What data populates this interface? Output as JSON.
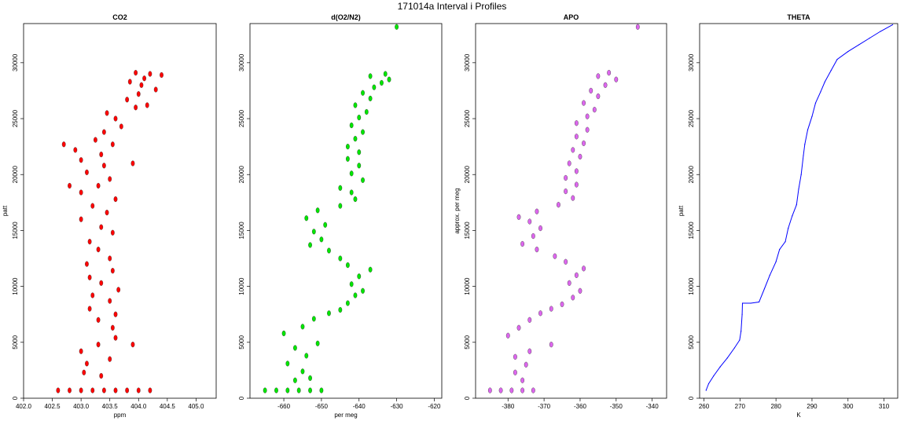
{
  "figure": {
    "title": "171014a   Interval i Profiles"
  },
  "chart_data": [
    {
      "type": "scatter",
      "title": "CO2",
      "xlabel": "ppm",
      "ylabel": "patt",
      "xlim": [
        402.0,
        405.35
      ],
      "ylim": [
        0,
        33500
      ],
      "xticks": [
        "402.0",
        "402.5",
        "403.0",
        "403.5",
        "404.0",
        "404.5",
        "405.0"
      ],
      "xtick_values": [
        402.0,
        402.5,
        403.0,
        403.5,
        404.0,
        404.5,
        405.0
      ],
      "yticks": [
        "0",
        "5000",
        "10000",
        "15000",
        "20000",
        "25000",
        "30000"
      ],
      "ytick_values": [
        0,
        5000,
        10000,
        15000,
        20000,
        25000,
        30000
      ],
      "color": "#ff0000",
      "series": [
        {
          "values": [
            [
              402.6,
              700
            ],
            [
              402.8,
              700
            ],
            [
              403.0,
              700
            ],
            [
              403.2,
              700
            ],
            [
              403.4,
              700
            ],
            [
              403.6,
              700
            ],
            [
              403.8,
              700
            ],
            [
              404.0,
              700
            ],
            [
              404.2,
              700
            ],
            [
              403.05,
              2300
            ],
            [
              403.1,
              3100
            ],
            [
              403.35,
              2000
            ],
            [
              403.5,
              3500
            ],
            [
              403.0,
              4200
            ],
            [
              403.3,
              4800
            ],
            [
              403.9,
              4800
            ],
            [
              403.6,
              5400
            ],
            [
              403.55,
              6300
            ],
            [
              403.3,
              7000
            ],
            [
              403.6,
              7500
            ],
            [
              403.15,
              8000
            ],
            [
              403.5,
              8700
            ],
            [
              403.2,
              9200
            ],
            [
              403.65,
              9700
            ],
            [
              403.35,
              10300
            ],
            [
              403.15,
              10800
            ],
            [
              403.55,
              11400
            ],
            [
              403.1,
              12000
            ],
            [
              403.5,
              12500
            ],
            [
              403.3,
              13300
            ],
            [
              403.15,
              14000
            ],
            [
              403.55,
              14800
            ],
            [
              403.35,
              15300
            ],
            [
              403.0,
              16000
            ],
            [
              403.45,
              16600
            ],
            [
              403.2,
              17200
            ],
            [
              403.6,
              17800
            ],
            [
              403.0,
              18400
            ],
            [
              403.3,
              19000
            ],
            [
              402.8,
              19000
            ],
            [
              403.5,
              19600
            ],
            [
              403.1,
              20200
            ],
            [
              403.4,
              20800
            ],
            [
              403.9,
              21000
            ],
            [
              403.0,
              21300
            ],
            [
              403.35,
              21800
            ],
            [
              402.9,
              22200
            ],
            [
              403.55,
              22700
            ],
            [
              403.25,
              23100
            ],
            [
              402.7,
              22700
            ],
            [
              403.4,
              23800
            ],
            [
              403.7,
              24300
            ],
            [
              403.6,
              25000
            ],
            [
              403.45,
              25500
            ],
            [
              403.95,
              26000
            ],
            [
              404.15,
              26200
            ],
            [
              403.8,
              26700
            ],
            [
              404.0,
              27200
            ],
            [
              404.3,
              27600
            ],
            [
              404.05,
              28000
            ],
            [
              403.85,
              28300
            ],
            [
              404.1,
              28600
            ],
            [
              404.4,
              28900
            ],
            [
              404.2,
              29000
            ],
            [
              403.95,
              29100
            ]
          ]
        }
      ]
    },
    {
      "type": "scatter",
      "title": "d(O2/N2)",
      "xlabel": "per meg",
      "ylabel": "",
      "xlim": [
        -669,
        -618
      ],
      "ylim": [
        0,
        33500
      ],
      "xticks": [
        "-660",
        "-650",
        "-640",
        "-630",
        "-620"
      ],
      "xtick_values": [
        -660,
        -650,
        -640,
        -630,
        -620
      ],
      "yticks": [
        "0",
        "5000",
        "10000",
        "15000",
        "20000",
        "25000",
        "30000"
      ],
      "ytick_values": [
        0,
        5000,
        10000,
        15000,
        20000,
        25000,
        30000
      ],
      "color": "#00e600",
      "series": [
        {
          "values": [
            [
              -665,
              700
            ],
            [
              -662,
              700
            ],
            [
              -659,
              700
            ],
            [
              -656,
              700
            ],
            [
              -653,
              700
            ],
            [
              -650,
              700
            ],
            [
              -657,
              1600
            ],
            [
              -653,
              1800
            ],
            [
              -655,
              2400
            ],
            [
              -659,
              3100
            ],
            [
              -654,
              3800
            ],
            [
              -657,
              4500
            ],
            [
              -651,
              4900
            ],
            [
              -660,
              5800
            ],
            [
              -655,
              6400
            ],
            [
              -652,
              7100
            ],
            [
              -648,
              7600
            ],
            [
              -645,
              7900
            ],
            [
              -643,
              8500
            ],
            [
              -641,
              9200
            ],
            [
              -639,
              9600
            ],
            [
              -642,
              10200
            ],
            [
              -640,
              10900
            ],
            [
              -637,
              11500
            ],
            [
              -643,
              11900
            ],
            [
              -645,
              12500
            ],
            [
              -648,
              13200
            ],
            [
              -653,
              13700
            ],
            [
              -650,
              14200
            ],
            [
              -652,
              14900
            ],
            [
              -649,
              15500
            ],
            [
              -654,
              16100
            ],
            [
              -651,
              16800
            ],
            [
              -645,
              17200
            ],
            [
              -641,
              17800
            ],
            [
              -642,
              18400
            ],
            [
              -645,
              18800
            ],
            [
              -639,
              19500
            ],
            [
              -642,
              20100
            ],
            [
              -640,
              20800
            ],
            [
              -643,
              21400
            ],
            [
              -640,
              22000
            ],
            [
              -643,
              22500
            ],
            [
              -641,
              23200
            ],
            [
              -639,
              23800
            ],
            [
              -642,
              24400
            ],
            [
              -640,
              25100
            ],
            [
              -638,
              25600
            ],
            [
              -641,
              26200
            ],
            [
              -637,
              26800
            ],
            [
              -639,
              27300
            ],
            [
              -636,
              27800
            ],
            [
              -634,
              28200
            ],
            [
              -632,
              28500
            ],
            [
              -637,
              28800
            ],
            [
              -633,
              29000
            ],
            [
              -630,
              33200
            ]
          ]
        }
      ]
    },
    {
      "type": "scatter",
      "title": "APO",
      "xlabel": "",
      "ylabel": "approx. per meg",
      "xlim": [
        -389,
        -336
      ],
      "ylim": [
        0,
        33500
      ],
      "xticks": [
        "-380",
        "-370",
        "-360",
        "-350",
        "-340"
      ],
      "xtick_values": [
        -380,
        -370,
        -360,
        -350,
        -340
      ],
      "yticks": [
        "0",
        "5000",
        "10000",
        "15000",
        "20000",
        "25000",
        "30000"
      ],
      "ytick_values": [
        0,
        5000,
        10000,
        15000,
        20000,
        25000,
        30000
      ],
      "color": "#dd66ee",
      "series": [
        {
          "values": [
            [
              -385,
              700
            ],
            [
              -382,
              700
            ],
            [
              -379,
              700
            ],
            [
              -376,
              700
            ],
            [
              -373,
              700
            ],
            [
              -376,
              1600
            ],
            [
              -378,
              2300
            ],
            [
              -375,
              3000
            ],
            [
              -378,
              3700
            ],
            [
              -374,
              4200
            ],
            [
              -368,
              4800
            ],
            [
              -380,
              5600
            ],
            [
              -377,
              6300
            ],
            [
              -374,
              7000
            ],
            [
              -371,
              7600
            ],
            [
              -368,
              8000
            ],
            [
              -365,
              8400
            ],
            [
              -362,
              9000
            ],
            [
              -360,
              9600
            ],
            [
              -363,
              10300
            ],
            [
              -361,
              11000
            ],
            [
              -359,
              11600
            ],
            [
              -364,
              12200
            ],
            [
              -367,
              12700
            ],
            [
              -372,
              13300
            ],
            [
              -376,
              13800
            ],
            [
              -373,
              14500
            ],
            [
              -371,
              15200
            ],
            [
              -374,
              15800
            ],
            [
              -377,
              16200
            ],
            [
              -372,
              16700
            ],
            [
              -366,
              17300
            ],
            [
              -362,
              17900
            ],
            [
              -364,
              18500
            ],
            [
              -361,
              19100
            ],
            [
              -364,
              19700
            ],
            [
              -361,
              20300
            ],
            [
              -363,
              21000
            ],
            [
              -360,
              21600
            ],
            [
              -362,
              22200
            ],
            [
              -359,
              22800
            ],
            [
              -361,
              23400
            ],
            [
              -358,
              24000
            ],
            [
              -361,
              24600
            ],
            [
              -358,
              25200
            ],
            [
              -356,
              25800
            ],
            [
              -359,
              26400
            ],
            [
              -355,
              27000
            ],
            [
              -357,
              27500
            ],
            [
              -353,
              28000
            ],
            [
              -350,
              28500
            ],
            [
              -355,
              28800
            ],
            [
              -352,
              29100
            ],
            [
              -344,
              33200
            ]
          ]
        }
      ]
    },
    {
      "type": "line",
      "title": "THETA",
      "xlabel": "K",
      "ylabel": "patt",
      "xlim": [
        258.8,
        313.8
      ],
      "ylim": [
        0,
        33500
      ],
      "xticks": [
        "260",
        "270",
        "280",
        "290",
        "300",
        "310"
      ],
      "xtick_values": [
        260,
        270,
        280,
        290,
        300,
        310
      ],
      "yticks": [
        "0",
        "5000",
        "10000",
        "15000",
        "20000",
        "25000",
        "30000"
      ],
      "ytick_values": [
        0,
        5000,
        10000,
        15000,
        20000,
        25000,
        30000
      ],
      "color": "#0000ff",
      "series": [
        {
          "values": [
            [
              260.6,
              700
            ],
            [
              261.3,
              1300
            ],
            [
              262.7,
              2000
            ],
            [
              264.5,
              2800
            ],
            [
              266.5,
              3600
            ],
            [
              268.5,
              4500
            ],
            [
              269.9,
              5200
            ],
            [
              270.3,
              6000
            ],
            [
              270.6,
              7500
            ],
            [
              270.7,
              8500
            ],
            [
              273.0,
              8500
            ],
            [
              275.3,
              8600
            ],
            [
              276.8,
              9800
            ],
            [
              278.3,
              11000
            ],
            [
              280.0,
              12200
            ],
            [
              281.0,
              13300
            ],
            [
              282.6,
              14000
            ],
            [
              283.4,
              15200
            ],
            [
              284.5,
              16300
            ],
            [
              285.7,
              17300
            ],
            [
              286.3,
              18700
            ],
            [
              287.0,
              20000
            ],
            [
              287.6,
              21700
            ],
            [
              288.0,
              22700
            ],
            [
              288.8,
              24000
            ],
            [
              290.0,
              25200
            ],
            [
              291.0,
              26400
            ],
            [
              292.4,
              27400
            ],
            [
              293.6,
              28300
            ],
            [
              295.3,
              29300
            ],
            [
              297.0,
              30300
            ],
            [
              300.0,
              31000
            ],
            [
              303.0,
              31600
            ],
            [
              306.0,
              32200
            ],
            [
              309.0,
              32800
            ],
            [
              312.4,
              33400
            ]
          ]
        }
      ]
    }
  ]
}
